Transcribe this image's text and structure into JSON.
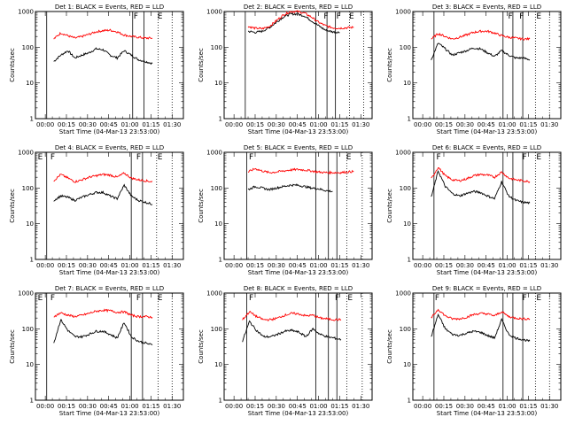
{
  "figure": {
    "xlabel": "Start Time (04-Mar-13 23:53:00)",
    "ylabel": "Counts/sec",
    "x_tick_labels": [
      "00:00",
      "00:15",
      "00:30",
      "00:45",
      "01:00",
      "01:15",
      "01:30"
    ],
    "y_tick_labels": [
      "1",
      "10",
      "100",
      "1000"
    ],
    "colors": {
      "events": "#000000",
      "lld": "#ff0000"
    }
  },
  "chart_data": [
    {
      "type": "line",
      "title": "Det 1: BLACK = Events, RED = LLD",
      "x_minutes": [
        6,
        11,
        16,
        21,
        26,
        31,
        36,
        41,
        46,
        51,
        56,
        61,
        66,
        71,
        76
      ],
      "xlim_minutes": [
        -7,
        98
      ],
      "ylim": [
        1,
        1000
      ],
      "yscale": "log",
      "series": [
        {
          "name": "Events",
          "values": [
            40,
            60,
            80,
            50,
            60,
            70,
            90,
            85,
            60,
            50,
            80,
            60,
            45,
            40,
            35
          ]
        },
        {
          "name": "LLD",
          "values": [
            170,
            250,
            210,
            180,
            200,
            230,
            270,
            290,
            300,
            270,
            220,
            200,
            190,
            180,
            180
          ]
        }
      ],
      "annotations": [
        "F",
        "E"
      ]
    },
    {
      "type": "line",
      "title": "Det 2: BLACK = Events, RED = LLD",
      "x_minutes": [
        10,
        15,
        20,
        25,
        30,
        35,
        40,
        45,
        50,
        55,
        60,
        65,
        70,
        75,
        80,
        85
      ],
      "xlim_minutes": [
        -7,
        98
      ],
      "ylim": [
        1,
        1000
      ],
      "yscale": "log",
      "series": [
        {
          "name": "Events",
          "values": [
            280,
            260,
            280,
            350,
            500,
            700,
            850,
            850,
            750,
            550,
            400,
            300,
            270,
            260,
            0,
            0
          ]
        },
        {
          "name": "LLD",
          "values": [
            380,
            340,
            330,
            380,
            550,
            800,
            1000,
            1000,
            900,
            700,
            500,
            400,
            350,
            340,
            350,
            360
          ]
        }
      ],
      "annotations": [
        "F",
        "F",
        "E"
      ]
    },
    {
      "type": "line",
      "title": "Det 3: BLACK = Events, RED = LLD",
      "x_minutes": [
        6,
        11,
        16,
        21,
        26,
        31,
        36,
        41,
        46,
        51,
        56,
        61,
        66,
        71,
        76
      ],
      "xlim_minutes": [
        -7,
        98
      ],
      "ylim": [
        1,
        1000
      ],
      "yscale": "log",
      "series": [
        {
          "name": "Events",
          "values": [
            45,
            130,
            90,
            60,
            70,
            80,
            95,
            90,
            70,
            55,
            80,
            60,
            50,
            50,
            45
          ]
        },
        {
          "name": "LLD",
          "values": [
            170,
            240,
            200,
            170,
            190,
            220,
            260,
            280,
            280,
            250,
            210,
            190,
            180,
            170,
            170
          ]
        }
      ],
      "annotations": [
        "F",
        "F",
        "E"
      ]
    },
    {
      "type": "line",
      "title": "Det 4: BLACK = Events, RED = LLD",
      "x_minutes": [
        6,
        11,
        16,
        21,
        26,
        31,
        36,
        41,
        46,
        51,
        56,
        61,
        66,
        71,
        76
      ],
      "xlim_minutes": [
        -7,
        98
      ],
      "ylim": [
        1,
        1000
      ],
      "yscale": "log",
      "series": [
        {
          "name": "Events",
          "values": [
            45,
            60,
            55,
            45,
            55,
            65,
            75,
            75,
            60,
            50,
            120,
            60,
            45,
            40,
            35
          ]
        },
        {
          "name": "LLD",
          "values": [
            160,
            240,
            190,
            150,
            170,
            200,
            220,
            240,
            230,
            200,
            260,
            190,
            170,
            160,
            150
          ]
        }
      ],
      "annotations": [
        "E",
        "F",
        "F",
        "E"
      ]
    },
    {
      "type": "line",
      "title": "Det 5: BLACK = Events, RED = LLD",
      "x_minutes": [
        10,
        15,
        20,
        25,
        30,
        35,
        40,
        45,
        50,
        55,
        60,
        65,
        70,
        75,
        80,
        85
      ],
      "xlim_minutes": [
        -7,
        98
      ],
      "ylim": [
        1,
        1000
      ],
      "yscale": "log",
      "series": [
        {
          "name": "Events",
          "values": [
            90,
            110,
            100,
            90,
            100,
            110,
            120,
            120,
            110,
            100,
            95,
            85,
            80,
            0,
            0,
            0
          ]
        },
        {
          "name": "LLD",
          "values": [
            280,
            350,
            300,
            270,
            280,
            300,
            320,
            330,
            320,
            300,
            280,
            270,
            270,
            270,
            280,
            290
          ]
        }
      ],
      "annotations": [
        "F",
        "E"
      ]
    },
    {
      "type": "line",
      "title": "Det 6: BLACK = Events, RED = LLD",
      "x_minutes": [
        6,
        11,
        16,
        21,
        26,
        31,
        36,
        41,
        46,
        51,
        56,
        61,
        66,
        71,
        76
      ],
      "xlim_minutes": [
        -7,
        98
      ],
      "ylim": [
        1,
        1000
      ],
      "yscale": "log",
      "series": [
        {
          "name": "Events",
          "values": [
            55,
            300,
            110,
            70,
            60,
            70,
            80,
            75,
            60,
            50,
            150,
            60,
            45,
            40,
            38
          ]
        },
        {
          "name": "LLD",
          "values": [
            180,
            380,
            220,
            170,
            160,
            180,
            220,
            240,
            230,
            200,
            280,
            190,
            170,
            160,
            150
          ]
        }
      ],
      "annotations": [
        "F",
        "F",
        "E"
      ]
    },
    {
      "type": "line",
      "title": "Det 7: BLACK = Events, RED = LLD",
      "x_minutes": [
        6,
        11,
        16,
        21,
        26,
        31,
        36,
        41,
        46,
        51,
        56,
        61,
        66,
        71,
        76
      ],
      "xlim_minutes": [
        -7,
        98
      ],
      "ylim": [
        1,
        1000
      ],
      "yscale": "log",
      "series": [
        {
          "name": "Events",
          "values": [
            40,
            180,
            90,
            60,
            60,
            70,
            85,
            85,
            70,
            55,
            150,
            60,
            45,
            40,
            35
          ]
        },
        {
          "name": "LLD",
          "values": [
            220,
            280,
            240,
            220,
            240,
            270,
            310,
            330,
            320,
            290,
            300,
            240,
            220,
            220,
            210
          ]
        }
      ],
      "annotations": [
        "E",
        "F",
        "F",
        "E"
      ]
    },
    {
      "type": "line",
      "title": "Det 8: BLACK = Events, RED = LLD",
      "x_minutes": [
        6,
        11,
        16,
        21,
        26,
        31,
        36,
        41,
        46,
        51,
        56,
        61,
        66,
        71,
        76
      ],
      "xlim_minutes": [
        -7,
        98
      ],
      "ylim": [
        1,
        1000
      ],
      "yscale": "log",
      "series": [
        {
          "name": "Events",
          "values": [
            45,
            160,
            90,
            60,
            60,
            70,
            85,
            90,
            80,
            60,
            100,
            70,
            60,
            55,
            50
          ]
        },
        {
          "name": "LLD",
          "values": [
            180,
            300,
            220,
            180,
            180,
            200,
            240,
            270,
            260,
            230,
            240,
            200,
            190,
            180,
            180
          ]
        }
      ],
      "annotations": [
        "F",
        "F",
        "E"
      ]
    },
    {
      "type": "line",
      "title": "Det 9: BLACK = Events, RED = LLD",
      "x_minutes": [
        6,
        11,
        16,
        21,
        26,
        31,
        36,
        41,
        46,
        51,
        56,
        61,
        66,
        71,
        76
      ],
      "xlim_minutes": [
        -7,
        98
      ],
      "ylim": [
        1,
        1000
      ],
      "yscale": "log",
      "series": [
        {
          "name": "Events",
          "values": [
            60,
            250,
            100,
            70,
            65,
            75,
            85,
            80,
            65,
            55,
            180,
            70,
            55,
            50,
            45
          ]
        },
        {
          "name": "LLD",
          "values": [
            200,
            350,
            230,
            190,
            190,
            210,
            250,
            270,
            260,
            230,
            300,
            220,
            200,
            190,
            190
          ]
        }
      ],
      "annotations": [
        "F",
        "F",
        "E"
      ]
    }
  ]
}
